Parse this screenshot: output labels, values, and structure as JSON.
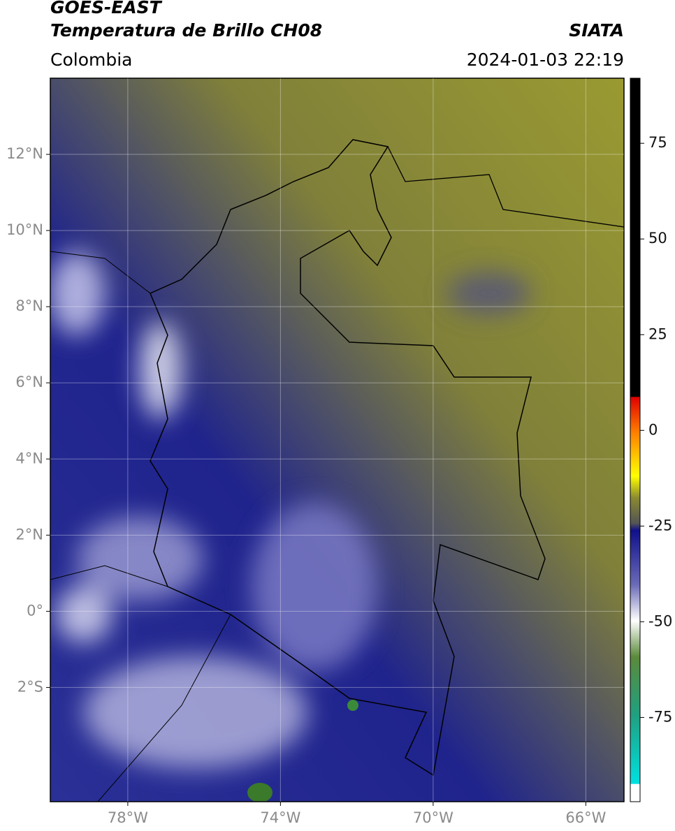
{
  "header": {
    "line1": "GOES-EAST",
    "line2": "Temperatura de Brillo CH08",
    "source": "SIATA",
    "region": "Colombia",
    "datetime": "2024-01-03 22:19"
  },
  "map": {
    "xlim": [
      -80.03,
      -65.0
    ],
    "ylim": [
      -5.0,
      14.0
    ],
    "xticks": [
      {
        "value": -78,
        "label": "78°W"
      },
      {
        "value": -74,
        "label": "74°W"
      },
      {
        "value": -70,
        "label": "70°W"
      },
      {
        "value": -66,
        "label": "66°W"
      }
    ],
    "yticks": [
      {
        "value": 12,
        "label": "12°N"
      },
      {
        "value": 10,
        "label": "10°N"
      },
      {
        "value": 8,
        "label": "8°N"
      },
      {
        "value": 6,
        "label": "6°N"
      },
      {
        "value": 4,
        "label": "4°N"
      },
      {
        "value": 2,
        "label": "2°N"
      },
      {
        "value": 0,
        "label": "0°"
      },
      {
        "value": -2,
        "label": "2°S"
      }
    ],
    "grid": true
  },
  "colorbar": {
    "lim": [
      -97,
      92
    ],
    "ticks": [
      75,
      50,
      25,
      0,
      -25,
      -50,
      -75
    ]
  }
}
